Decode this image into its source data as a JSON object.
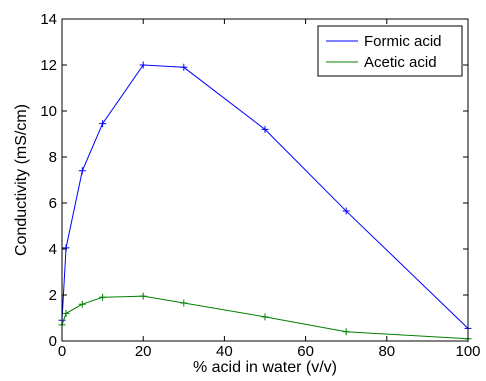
{
  "chart_data": {
    "type": "line",
    "title": "",
    "xlabel": "% acid in water (v/v)",
    "ylabel": "Conductivity (mS/cm)",
    "xlim": [
      0,
      100
    ],
    "ylim": [
      0,
      14
    ],
    "xticks": [
      0,
      20,
      40,
      60,
      80,
      100
    ],
    "yticks": [
      0,
      2,
      4,
      6,
      8,
      10,
      12,
      14
    ],
    "grid": false,
    "legend_position": "top-right",
    "series": [
      {
        "name": "Formic acid",
        "color": "#0000ff",
        "marker": "plus",
        "x": [
          0,
          1,
          5,
          10,
          20,
          30,
          50,
          70,
          100
        ],
        "y": [
          0.9,
          4.05,
          7.4,
          9.45,
          12.0,
          11.9,
          9.2,
          5.65,
          0.55
        ]
      },
      {
        "name": "Acetic acid",
        "color": "#008000",
        "marker": "plus",
        "x": [
          0,
          1,
          5,
          10,
          20,
          30,
          50,
          70,
          100
        ],
        "y": [
          0.7,
          1.2,
          1.6,
          1.9,
          1.95,
          1.65,
          1.05,
          0.4,
          0.1
        ]
      }
    ]
  }
}
